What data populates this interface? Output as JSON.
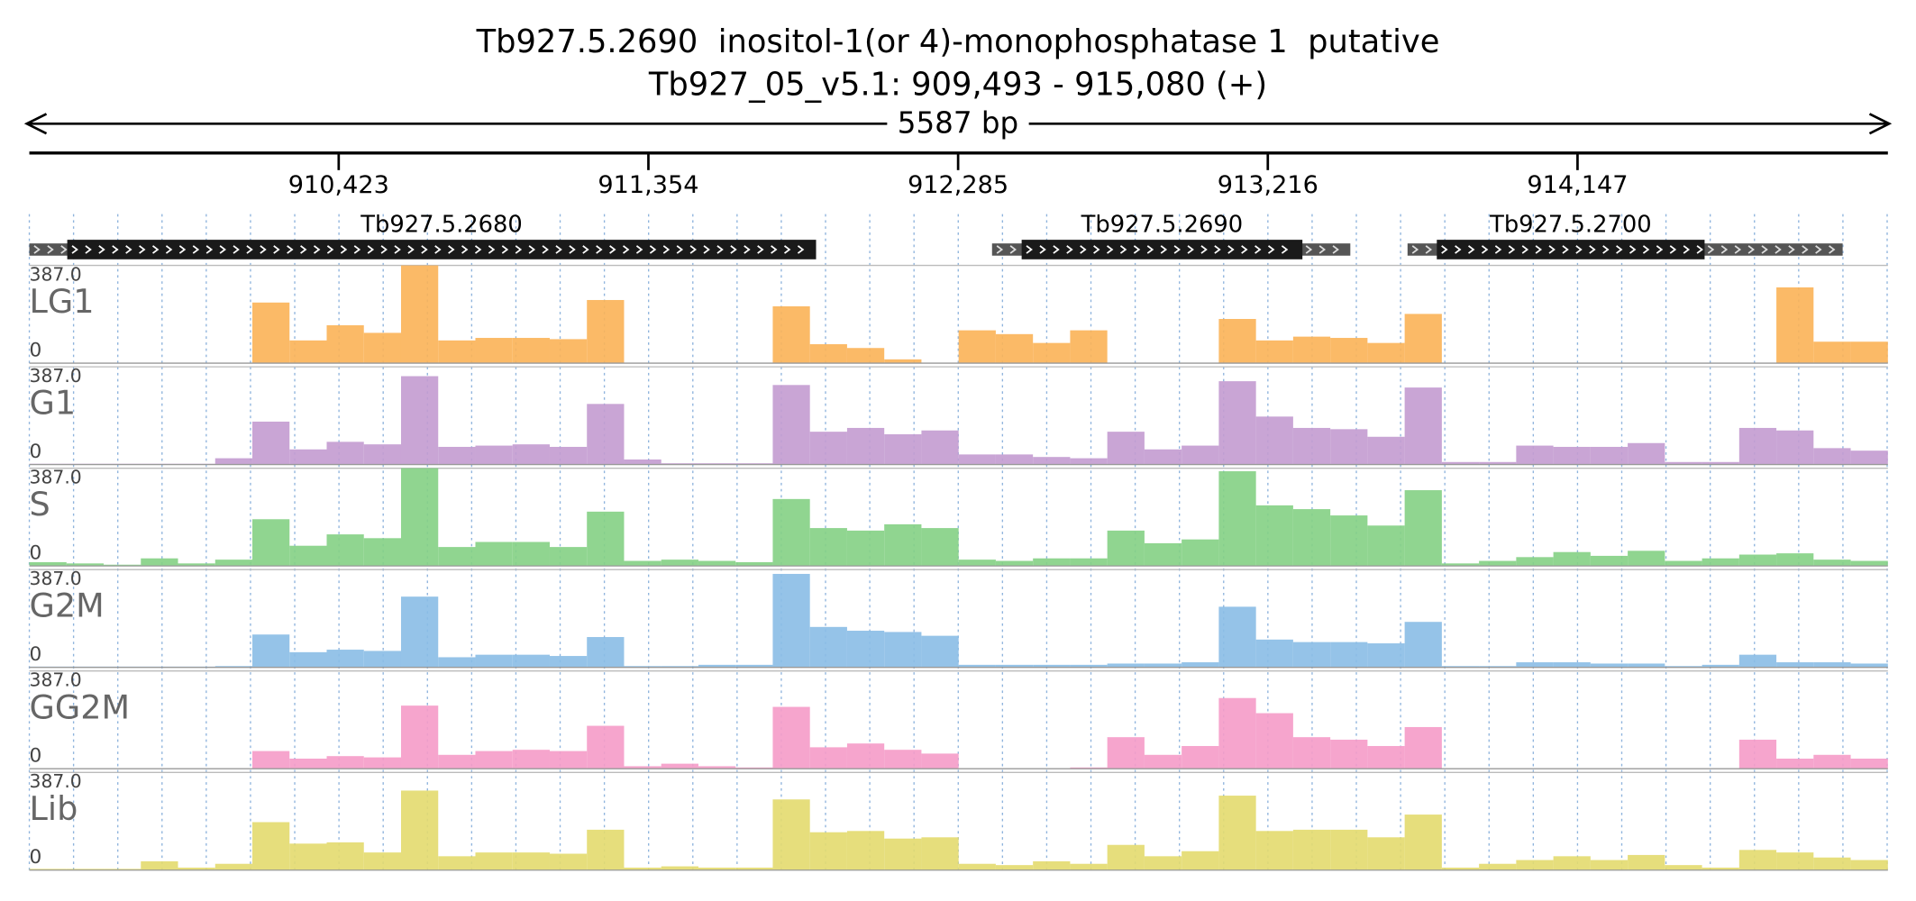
{
  "header": {
    "title": "Tb927.5.2690  inositol-1(or 4)-monophosphatase 1  putative",
    "subtitle": "Tb927_05_v5.1: 909,493 - 915,080 (+)",
    "span": "5587 bp"
  },
  "chart_data": {
    "type": "coverage",
    "xlim": [
      909493,
      915080
    ],
    "xticks": [
      {
        "value": 910423,
        "label": "910,423"
      },
      {
        "value": 911354,
        "label": "911,354"
      },
      {
        "value": 912285,
        "label": "912,285"
      },
      {
        "value": 913216,
        "label": "913,216"
      },
      {
        "value": 914147,
        "label": "914,147"
      }
    ],
    "genes": [
      {
        "name": "Tb927.5.2680",
        "start": 909493,
        "end": 911858,
        "cds_start": 909607,
        "cds_end": 911858
      },
      {
        "name": "Tb927.5.2690",
        "start": 912387,
        "end": 913464,
        "cds_start": 912476,
        "cds_end": 913320
      },
      {
        "name": "Tb927.5.2700",
        "start": 913636,
        "end": 914944,
        "cds_start": 913724,
        "cds_end": 914529
      }
    ],
    "ylim": [
      0,
      387
    ],
    "yticks": [
      0,
      {
        "value": 387,
        "label": "387.0"
      }
    ],
    "series": [
      {
        "name": "LG1",
        "color": "#fbb257",
        "values": [
          0,
          0,
          0,
          0,
          0,
          0,
          240,
          90,
          150,
          120,
          387,
          90,
          100,
          100,
          95,
          250,
          0,
          0,
          0,
          0,
          225,
          75,
          60,
          15,
          0,
          130,
          115,
          80,
          130,
          0,
          0,
          0,
          175,
          90,
          105,
          100,
          80,
          195,
          0,
          0,
          0,
          0,
          0,
          0,
          0,
          0,
          0,
          300,
          85,
          85
        ]
      },
      {
        "name": "G1",
        "color": "#c39bd0",
        "values": [
          3,
          3,
          3,
          3,
          3,
          25,
          170,
          60,
          90,
          80,
          350,
          70,
          75,
          80,
          70,
          240,
          20,
          5,
          5,
          5,
          315,
          130,
          145,
          120,
          135,
          40,
          40,
          30,
          25,
          130,
          60,
          75,
          330,
          190,
          145,
          140,
          110,
          305,
          10,
          10,
          75,
          70,
          70,
          85,
          10,
          10,
          145,
          135,
          65,
          55
        ]
      },
      {
        "name": "S",
        "color": "#84d084",
        "values": [
          15,
          10,
          5,
          30,
          10,
          25,
          185,
          80,
          125,
          110,
          387,
          75,
          95,
          95,
          75,
          215,
          20,
          25,
          20,
          15,
          265,
          150,
          140,
          165,
          150,
          25,
          20,
          30,
          30,
          140,
          90,
          105,
          375,
          240,
          225,
          200,
          160,
          300,
          10,
          20,
          35,
          55,
          40,
          60,
          20,
          30,
          45,
          50,
          25,
          20
        ]
      },
      {
        "name": "G2M",
        "color": "#89bde6",
        "values": [
          3,
          3,
          3,
          3,
          3,
          5,
          130,
          60,
          70,
          65,
          280,
          40,
          50,
          50,
          45,
          120,
          5,
          5,
          10,
          10,
          370,
          160,
          145,
          140,
          125,
          10,
          10,
          10,
          10,
          15,
          15,
          20,
          240,
          110,
          100,
          100,
          95,
          180,
          5,
          5,
          20,
          20,
          15,
          15,
          5,
          10,
          50,
          20,
          20,
          15
        ]
      },
      {
        "name": "GG2M",
        "color": "#f59bc8",
        "values": [
          0,
          0,
          0,
          0,
          0,
          0,
          70,
          40,
          50,
          45,
          250,
          55,
          70,
          75,
          70,
          170,
          10,
          20,
          10,
          5,
          245,
          85,
          100,
          75,
          60,
          0,
          0,
          0,
          5,
          125,
          55,
          90,
          280,
          220,
          125,
          115,
          90,
          165,
          0,
          0,
          0,
          0,
          0,
          0,
          0,
          0,
          115,
          40,
          55,
          40
        ]
      },
      {
        "name": "Lib",
        "color": "#e3da6e",
        "values": [
          5,
          5,
          5,
          35,
          10,
          25,
          190,
          105,
          110,
          70,
          315,
          55,
          70,
          70,
          65,
          160,
          10,
          15,
          10,
          10,
          280,
          150,
          155,
          125,
          130,
          25,
          20,
          35,
          25,
          100,
          55,
          75,
          295,
          155,
          160,
          160,
          130,
          220,
          10,
          25,
          40,
          55,
          40,
          60,
          20,
          10,
          80,
          70,
          50,
          40
        ]
      }
    ]
  }
}
